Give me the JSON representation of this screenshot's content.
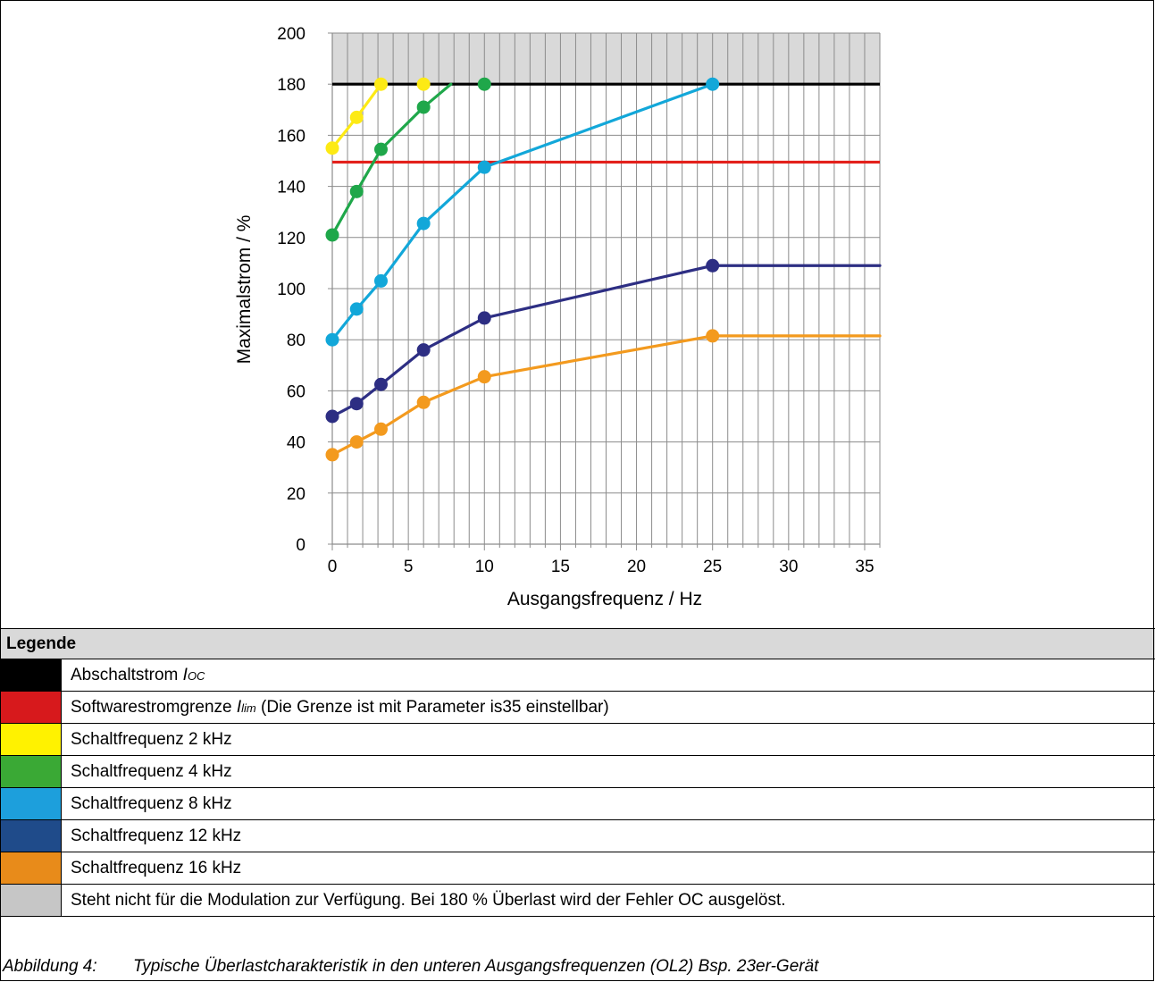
{
  "chart_data": {
    "type": "line",
    "xlabel": "Ausgangsfrequenz / Hz",
    "ylabel": "Maximalstrom / %",
    "xlim": [
      0,
      36
    ],
    "ylim": [
      0,
      200
    ],
    "xticks": [
      0,
      5,
      10,
      15,
      20,
      25,
      30,
      35
    ],
    "yticks": [
      0,
      20,
      40,
      60,
      80,
      100,
      120,
      140,
      160,
      180,
      200
    ],
    "xtick_labels": [
      "0",
      "5",
      "10",
      "15",
      "20",
      "25",
      "30",
      "35"
    ],
    "ytick_labels": [
      "0",
      "20",
      "40",
      "60",
      "80",
      "100",
      "120",
      "140",
      "160",
      "180",
      "200"
    ],
    "grid": true,
    "shaded_region": {
      "y_from": 180,
      "y_to": 200,
      "color": "#d9d9d9"
    },
    "reference_lines": [
      {
        "y": 180,
        "color": "#000000"
      },
      {
        "y": 149.5,
        "color": "#e3201b"
      }
    ],
    "series": [
      {
        "color": "#fdea14",
        "x": [
          0,
          1.6,
          3.2,
          6
        ],
        "y": [
          155,
          167,
          180,
          180
        ],
        "segments": [
          [
            0,
            1
          ],
          [
            1,
            2
          ]
        ]
      },
      {
        "color": "#1fa74a",
        "x": [
          0,
          1.6,
          3.2,
          6,
          10
        ],
        "y": [
          121,
          138,
          154.5,
          171,
          180
        ],
        "line_end": {
          "x": 7.8,
          "y": 180
        }
      },
      {
        "color": "#12a7d9",
        "x": [
          0,
          1.6,
          3.2,
          6,
          10,
          25
        ],
        "y": [
          80,
          92,
          103,
          125.5,
          147.5,
          180
        ]
      },
      {
        "color": "#2d2e83",
        "x": [
          0,
          1.6,
          3.2,
          6,
          10,
          25
        ],
        "y": [
          50,
          55,
          62.5,
          76,
          88.5,
          109
        ],
        "extend_to_x": 36
      },
      {
        "color": "#f39a1e",
        "x": [
          0,
          1.6,
          3.2,
          6,
          10,
          25
        ],
        "y": [
          35,
          40,
          45,
          55.5,
          65.5,
          81.5
        ],
        "extend_to_x": 36
      }
    ]
  },
  "legend": {
    "title": "Legende",
    "items": [
      {
        "color": "#000000",
        "text": "Abschaltstrom ",
        "symbol": "I",
        "sub": "OC",
        "suffix": ""
      },
      {
        "color": "#d7191c",
        "text": "Softwarestromgrenze ",
        "symbol": "I",
        "sub": "lim",
        "suffix": " (Die Grenze ist mit Parameter is35 einstellbar)"
      },
      {
        "color": "#fff200",
        "text": "Schaltfrequenz 2 kHz",
        "symbol": "",
        "sub": "",
        "suffix": ""
      },
      {
        "color": "#3aa935",
        "text": "Schaltfrequenz 4 kHz",
        "symbol": "",
        "sub": "",
        "suffix": ""
      },
      {
        "color": "#1d9fdc",
        "text": "Schaltfrequenz 8 kHz",
        "symbol": "",
        "sub": "",
        "suffix": ""
      },
      {
        "color": "#1f4b8a",
        "text": "Schaltfrequenz 12 kHz",
        "symbol": "",
        "sub": "",
        "suffix": ""
      },
      {
        "color": "#e88b1a",
        "text": "Schaltfrequenz 16 kHz",
        "symbol": "",
        "sub": "",
        "suffix": ""
      },
      {
        "color": "#c6c6c6",
        "text": "Steht nicht für die Modulation zur Verfügung. Bei 180 % Überlast wird der Fehler OC ausgelöst.",
        "symbol": "",
        "sub": "",
        "suffix": ""
      }
    ]
  },
  "caption": {
    "label": "Abbildung 4:",
    "text": "Typische Überlastcharakteristik in den unteren Ausgangsfrequenzen (OL2) Bsp. 23er-Gerät"
  }
}
